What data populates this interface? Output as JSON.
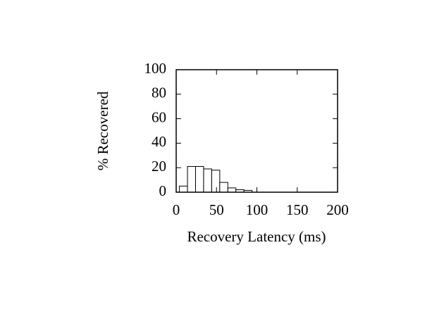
{
  "chart_data": {
    "type": "histogram",
    "xlabel": "Recovery Latency (ms)",
    "ylabel": "% Recovered",
    "bins": [
      4,
      14,
      24,
      34,
      44,
      54,
      64,
      74,
      84,
      94
    ],
    "values": [
      5,
      21,
      21,
      19,
      18,
      8,
      3.5,
      2,
      1.5
    ],
    "color": "#ffffff",
    "xlim": [
      0,
      200
    ],
    "ylim": [
      0,
      100
    ],
    "xticks": [
      0,
      50,
      100,
      150,
      200
    ],
    "yticks": [
      0,
      20,
      40,
      60,
      80,
      100
    ],
    "grid": false
  }
}
